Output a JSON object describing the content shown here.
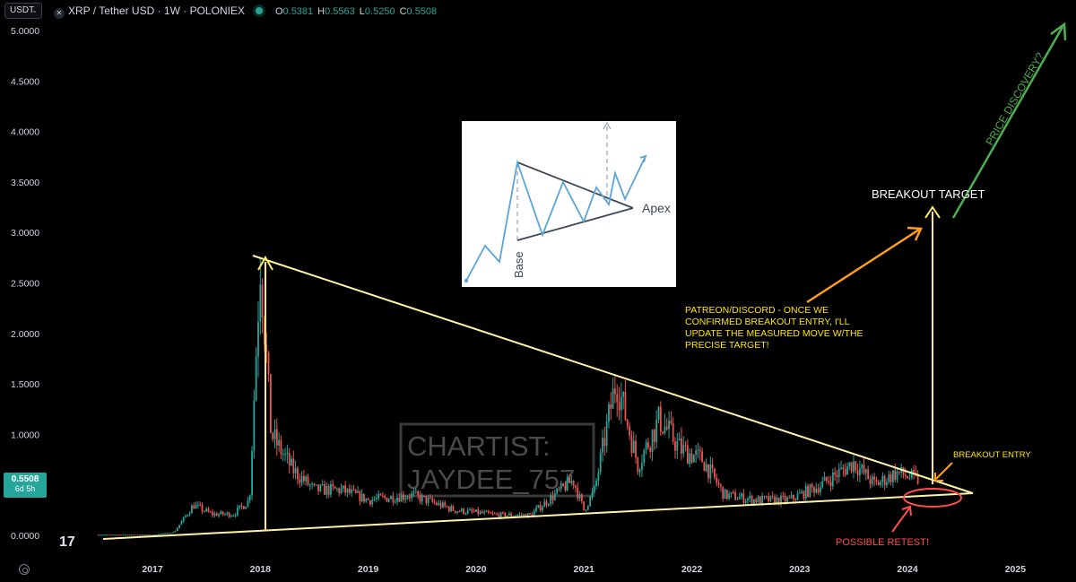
{
  "header": {
    "currency_select": "USDT",
    "symbol_title": "XRP / Tether USD · 1W · POLONIEX",
    "ohlc": [
      {
        "k": "O",
        "v": "0.5381"
      },
      {
        "k": "H",
        "v": "0.5563"
      },
      {
        "k": "L",
        "v": "0.5250"
      },
      {
        "k": "C",
        "v": "0.5508"
      }
    ]
  },
  "price_tag": {
    "price": "0.5508",
    "countdown": "6d 5h"
  },
  "colors": {
    "up": "#26a69a",
    "down": "#ef5350",
    "trendline": "#fff3a8",
    "target_arrow": "#ffeb70",
    "orange_arrow": "#ff9f1a",
    "green_arrow": "#4caf50",
    "red_annotation": "#ff4d4d"
  },
  "chart_data": {
    "type": "candlestick",
    "title": "XRP / Tether USD · 1W · POLONIEX",
    "x_ticks": [
      "2017",
      "2018",
      "2019",
      "2020",
      "2021",
      "2022",
      "2023",
      "2024",
      "2025"
    ],
    "y_ticks": [
      "5.0000",
      "4.5000",
      "4.0000",
      "3.5000",
      "3.0000",
      "2.5000",
      "2.0000",
      "1.5000",
      "1.0000",
      "0.5000",
      "0.0000"
    ],
    "ylim": [
      0,
      5.2
    ],
    "last_close": 0.5508,
    "close_series": [
      {
        "date": "2016.50",
        "close": 0.006
      },
      {
        "date": "2017.00",
        "close": 0.006
      },
      {
        "date": "2017.20",
        "close": 0.03
      },
      {
        "date": "2017.38",
        "close": 0.3
      },
      {
        "date": "2017.55",
        "close": 0.21
      },
      {
        "date": "2017.75",
        "close": 0.21
      },
      {
        "date": "2017.90",
        "close": 0.35
      },
      {
        "date": "2018.00",
        "close": 2.75
      },
      {
        "date": "2018.10",
        "close": 1.0
      },
      {
        "date": "2018.30",
        "close": 0.65
      },
      {
        "date": "2018.50",
        "close": 0.45
      },
      {
        "date": "2018.75",
        "close": 0.45
      },
      {
        "date": "2019.00",
        "close": 0.35
      },
      {
        "date": "2019.40",
        "close": 0.4
      },
      {
        "date": "2019.80",
        "close": 0.25
      },
      {
        "date": "2020.20",
        "close": 0.2
      },
      {
        "date": "2020.50",
        "close": 0.2
      },
      {
        "date": "2020.90",
        "close": 0.55
      },
      {
        "date": "2021.00",
        "close": 0.25
      },
      {
        "date": "2021.10",
        "close": 0.45
      },
      {
        "date": "2021.30",
        "close": 1.55
      },
      {
        "date": "2021.50",
        "close": 0.7
      },
      {
        "date": "2021.70",
        "close": 1.15
      },
      {
        "date": "2021.90",
        "close": 0.85
      },
      {
        "date": "2022.10",
        "close": 0.75
      },
      {
        "date": "2022.30",
        "close": 0.4
      },
      {
        "date": "2022.60",
        "close": 0.35
      },
      {
        "date": "2022.90",
        "close": 0.35
      },
      {
        "date": "2023.20",
        "close": 0.5
      },
      {
        "date": "2023.50",
        "close": 0.72
      },
      {
        "date": "2023.70",
        "close": 0.5
      },
      {
        "date": "2023.90",
        "close": 0.62
      },
      {
        "date": "2024.10",
        "close": 0.55
      }
    ],
    "lines": [
      {
        "name": "Upper trendline",
        "from": [
          "2018.00",
          2.78
        ],
        "to": [
          "2024.60",
          0.42
        ]
      },
      {
        "name": "Lower trendline",
        "from": [
          "2016.50",
          -0.02
        ],
        "to": [
          "2024.60",
          0.42
        ]
      },
      {
        "name": "Base vertical",
        "from": [
          "2018.05",
          0.05
        ],
        "to": [
          "2018.05",
          2.7
        ]
      },
      {
        "name": "Breakout target",
        "from": [
          "2024.20",
          0.5
        ],
        "to": [
          "2024.20",
          3.28
        ]
      }
    ],
    "annotations": [
      "BREAKOUT TARGET",
      "PATREON/DISCORD - ONCE WE CONFIRMED BREAKOUT ENTRY, I'LL UPDATE THE MEASURED MOVE W/THE PRECISE TARGET!",
      "BREAKOUT ENTRY",
      "POSSIBLE RETEST!",
      "PRICE DISCOVERY?"
    ],
    "watermark": [
      "CHARTIST:",
      "JAYDEE_757"
    ],
    "inset": {
      "label_apex": "Apex",
      "label_base": "Base"
    }
  }
}
